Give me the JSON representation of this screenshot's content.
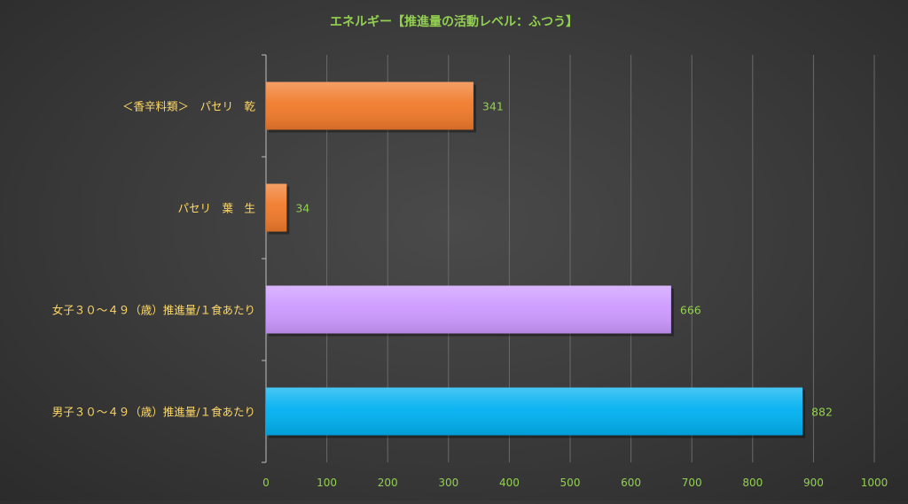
{
  "chart_data": {
    "type": "bar",
    "orientation": "horizontal",
    "title": "エネルギー【推進量の活動レベル：ふつう】",
    "xlabel": "",
    "ylabel": "",
    "xlim": [
      0,
      1000
    ],
    "ticks": [
      0,
      100,
      200,
      300,
      400,
      500,
      600,
      700,
      800,
      900,
      1000
    ],
    "grid": true,
    "legend": "none",
    "categories": [
      "＜香辛料類＞　パセリ　乾",
      "パセリ　葉　生",
      "女子３０～４９（歳）推進量/１食あたり",
      "男子３０～４９（歳）推進量/１食あたり"
    ],
    "values": [
      341,
      34,
      666,
      882
    ],
    "value_labels": [
      "341",
      "34",
      "666",
      "882"
    ],
    "bar_colors": [
      "#F07A2A",
      "#F07A2A",
      "#CC99FF",
      "#00B0F0"
    ],
    "colors": {
      "title": "#92D050",
      "category_label": "#FFD966",
      "tick_label": "#92D050",
      "data_label": "#92D050",
      "grid": "#6a6a6a",
      "axis": "#bfbfbf"
    }
  }
}
